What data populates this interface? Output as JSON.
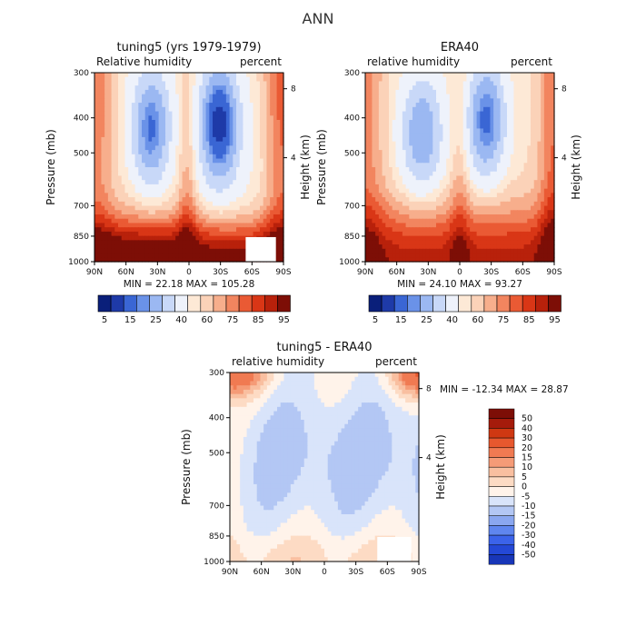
{
  "figure": {
    "title": "ANN"
  },
  "colors": {
    "abs_scale": [
      "#0a1f7a",
      "#1e3aa8",
      "#3a66d4",
      "#6a92e8",
      "#9bb8f2",
      "#c8d8f8",
      "#eef2fb",
      "#fde9d6",
      "#fbd2b8",
      "#f7ae8c",
      "#f2855f",
      "#ea5a34",
      "#d93616",
      "#b8210b",
      "#7d0e06"
    ],
    "diff_scale": [
      "#0a1f7a",
      "#1836b8",
      "#2448d6",
      "#3b63ea",
      "#5f86ef",
      "#8aa7f0",
      "#b3c7f4",
      "#d9e4fa",
      "#fff3ea",
      "#fddbc4",
      "#f9bfa0",
      "#f59b77",
      "#f07a52",
      "#e7582e",
      "#cf3812",
      "#a51b0b",
      "#7d0e06"
    ]
  },
  "chart_data": [
    {
      "type": "heatmap",
      "title": "tuning5 (yrs 1979-1979)",
      "left_label": "Relative humidity",
      "right_label": "percent",
      "ylabel": "Pressure (mb)",
      "ylabel_right": "Height (km)",
      "x_ticks": [
        "90N",
        "60N",
        "30N",
        "0",
        "30S",
        "60S",
        "90S"
      ],
      "y_ticks": [
        "300",
        "400",
        "500",
        "700",
        "850",
        "1000"
      ],
      "y_right_ticks": [
        "8",
        "4"
      ],
      "min_max_text": "MIN =   22.18   MAX =  105.28",
      "min": 22.18,
      "max": 105.28,
      "colorbar_labels": [
        "5",
        "15",
        "25",
        "40",
        "60",
        "75",
        "85",
        "95"
      ],
      "ylim": [
        1000,
        300
      ],
      "xlim": [
        90,
        -90
      ]
    },
    {
      "type": "heatmap",
      "title": "ERA40",
      "left_label": "relative humidity",
      "right_label": "percent",
      "ylabel": "Pressure (mb)",
      "ylabel_right": "Height (km)",
      "x_ticks": [
        "90N",
        "60N",
        "30N",
        "0",
        "30S",
        "60S",
        "90S"
      ],
      "y_ticks": [
        "300",
        "400",
        "500",
        "700",
        "850",
        "1000"
      ],
      "y_right_ticks": [
        "8",
        "4"
      ],
      "min_max_text": "MIN =   24.10   MAX =   93.27",
      "min": 24.1,
      "max": 93.27,
      "colorbar_labels": [
        "5",
        "15",
        "25",
        "40",
        "60",
        "75",
        "85",
        "95"
      ],
      "ylim": [
        1000,
        300
      ],
      "xlim": [
        90,
        -90
      ]
    },
    {
      "type": "heatmap",
      "title": "tuning5 - ERA40",
      "left_label": "relative humidity",
      "right_label": "percent",
      "ylabel": "Pressure (mb)",
      "ylabel_right": "Height (km)",
      "x_ticks": [
        "90N",
        "60N",
        "30N",
        "0",
        "30S",
        "60S",
        "90S"
      ],
      "y_ticks": [
        "300",
        "400",
        "500",
        "700",
        "850",
        "1000"
      ],
      "y_right_ticks": [
        "8",
        "4"
      ],
      "min_max_text": "MIN = -12.34   MAX =   28.87",
      "min": -12.34,
      "max": 28.87,
      "colorbar_labels": [
        "50",
        "40",
        "30",
        "20",
        "15",
        "10",
        "5",
        "0",
        "-5",
        "-10",
        "-15",
        "-20",
        "-30",
        "-40",
        "-50"
      ],
      "ylim": [
        1000,
        300
      ],
      "xlim": [
        90,
        -90
      ]
    }
  ]
}
